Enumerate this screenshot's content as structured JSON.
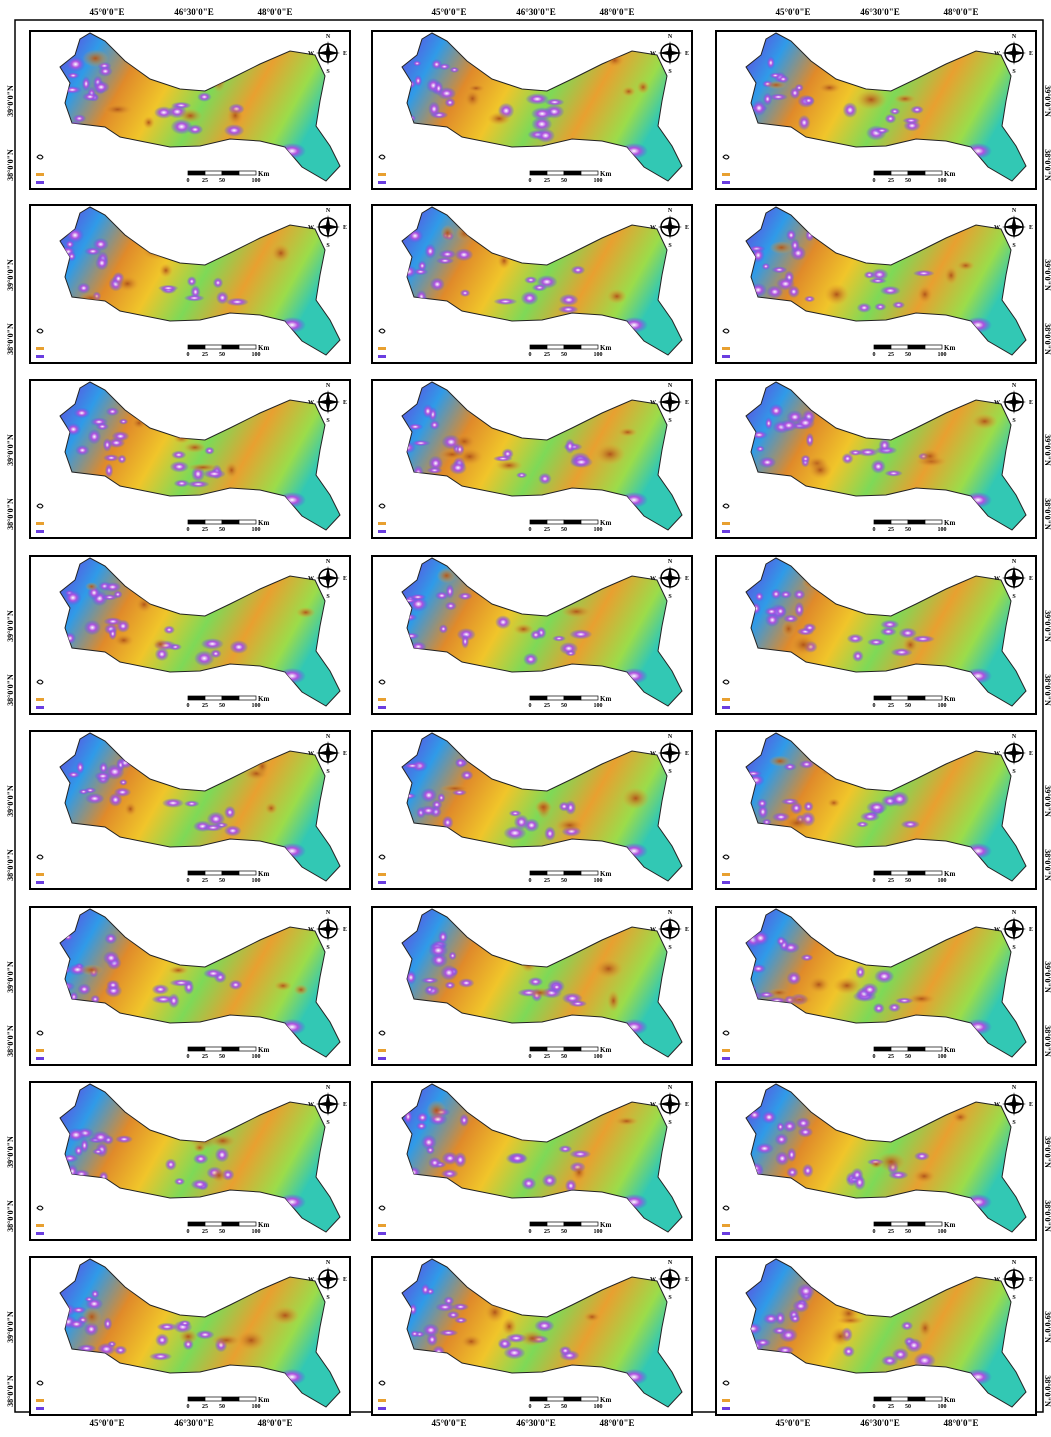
{
  "graticule": {
    "top_labels": [
      "45°0'0\"E",
      "46°30'0\"E",
      "48°0'0\"E"
    ],
    "side_labels": [
      "39°0'0\"N",
      "38°0'0\"N"
    ]
  },
  "panel": {
    "compass": [
      "N",
      "E",
      "S",
      "W"
    ],
    "scale_ticks": [
      "0",
      "25",
      "50",
      "100"
    ],
    "scale_unit": "Km"
  }
}
